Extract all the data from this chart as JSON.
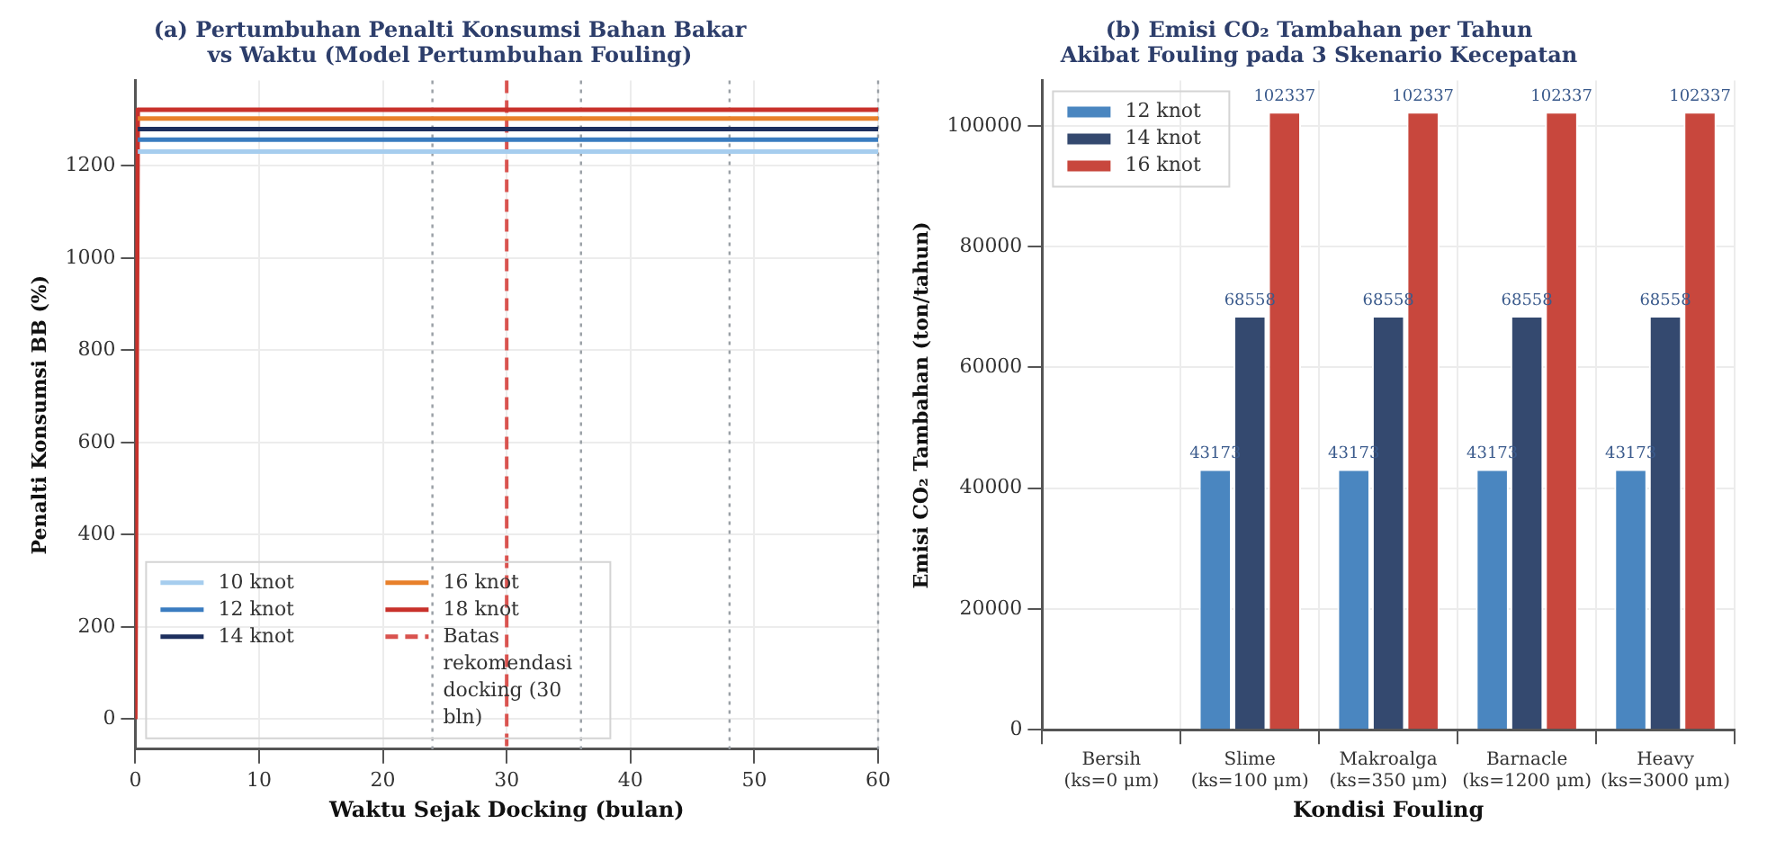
{
  "chart_data": [
    {
      "type": "line",
      "title": "(a) Pertumbuhan Penalti Konsumsi Bahan Bakar\nvs Waktu (Model Pertumbuhan Fouling)",
      "xlabel": "Waktu Sejak Docking (bulan)",
      "ylabel": "Penalti Konsumsi BB (%)",
      "series": [
        {
          "name": "10 knot",
          "color": "#a6cdee",
          "x": [
            0.2,
            60
          ],
          "values": [
            1231,
            1231
          ]
        },
        {
          "name": "12 knot",
          "color": "#3a7cc0",
          "x": [
            0.2,
            60
          ],
          "values": [
            1257,
            1257
          ]
        },
        {
          "name": "14 knot",
          "color": "#1d2f5e",
          "x": [
            0.2,
            60
          ],
          "values": [
            1280,
            1280
          ]
        },
        {
          "name": "16 knot",
          "color": "#e8802a",
          "x": [
            0.2,
            60
          ],
          "values": [
            1303,
            1303
          ]
        },
        {
          "name": "18 knot",
          "color": "#c8312b",
          "x": [
            0,
            0.2,
            60
          ],
          "values": [
            0,
            1322,
            1322
          ]
        }
      ],
      "xlim": [
        0,
        60
      ],
      "xticks": [
        0,
        10,
        20,
        30,
        40,
        50,
        60
      ],
      "ylim": [
        -65,
        1385
      ],
      "yticks": [
        0,
        200,
        400,
        600,
        800,
        1000,
        1200
      ],
      "ref_lines": [
        {
          "axis": "x",
          "value": 24,
          "color": "#9aa0a6",
          "line_style": "dotted"
        },
        {
          "axis": "x",
          "value": 36,
          "color": "#9aa0a6",
          "line_style": "dotted"
        },
        {
          "axis": "x",
          "value": 48,
          "color": "#9aa0a6",
          "line_style": "dotted"
        },
        {
          "axis": "x",
          "value": 60,
          "color": "#9aa0a6",
          "line_style": "dotted"
        },
        {
          "axis": "x",
          "value": 30,
          "label": "Batas rekomendasi docking (30 bln)",
          "color": "#d9534f",
          "line_style": "dashed"
        }
      ],
      "grid": true,
      "legend": "bottom left",
      "marker": "none",
      "line_style": "solid"
    },
    {
      "type": "bar",
      "title": "(b) Emisi CO₂ Tambahan per Tahun\nAkibat Fouling pada 3 Skenario Kecepatan",
      "xlabel": "Kondisi Fouling",
      "ylabel": "Emisi CO₂ Tambahan (ton/tahun)",
      "categories": [
        "Bersih\n(ks=0 μm)",
        "Slime\n(ks=100 μm)",
        "Makroalga\n(ks=350 μm)",
        "Barnacle\n(ks=1200 μm)",
        "Heavy\n(ks=3000 μm)"
      ],
      "series": [
        {
          "name": "12 knot",
          "color": "#4a86c0",
          "values": [
            0,
            43173,
            43173,
            43173,
            43173
          ],
          "value_labels": [
            null,
            "43173",
            "43173",
            "43173",
            "43173"
          ]
        },
        {
          "name": "14 knot",
          "color": "#34496f",
          "values": [
            0,
            68558,
            68558,
            68558,
            68558
          ],
          "value_labels": [
            null,
            "68558",
            "68558",
            "68558",
            "68558"
          ]
        },
        {
          "name": "16 knot",
          "color": "#c8473d",
          "values": [
            0,
            102337,
            102337,
            102337,
            102337
          ],
          "value_labels": [
            null,
            "102337",
            "102337",
            "102337",
            "102337"
          ]
        }
      ],
      "ylim": [
        0,
        107500
      ],
      "yticks": [
        0,
        20000,
        40000,
        60000,
        80000,
        100000
      ],
      "grid": true,
      "legend": "top left"
    }
  ]
}
